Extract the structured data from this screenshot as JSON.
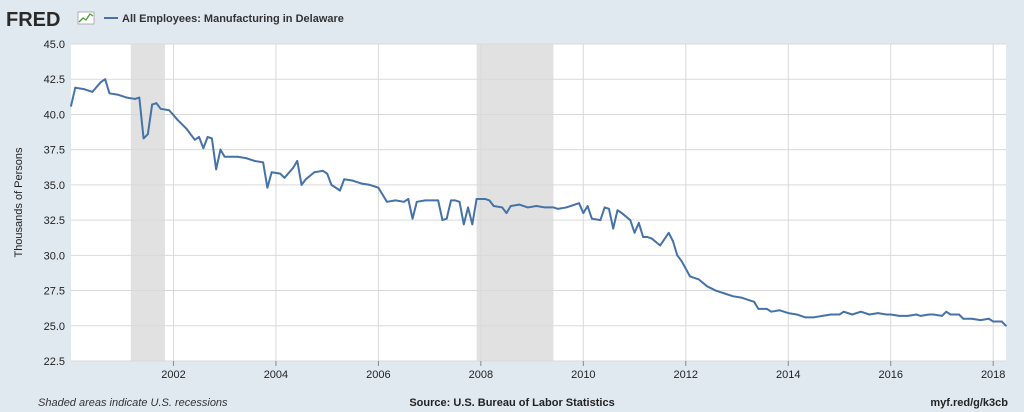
{
  "header": {
    "logo": "FRED",
    "series_title": "All Employees: Manufacturing in Delaware"
  },
  "footer": {
    "left": "Shaded areas indicate U.S. recessions",
    "source": "Source: U.S. Bureau of Labor Statistics",
    "short_url": "myf.red/g/k3cb"
  },
  "colors": {
    "line": "#4572a7",
    "recession": "#e1e1e1",
    "plot_bg": "#ffffff",
    "page_bg": "#e1e9f0",
    "grid": "#d9d9d9"
  },
  "chart_data": {
    "type": "line",
    "title": "All Employees: Manufacturing in Delaware",
    "xlabel": "",
    "ylabel": "Thousands of Persons",
    "xlim": [
      "2000-01",
      "2018-04"
    ],
    "ylim": [
      22.5,
      45.0
    ],
    "yticks": [
      "22.5",
      "25.0",
      "27.5",
      "30.0",
      "32.5",
      "35.0",
      "37.5",
      "40.0",
      "42.5",
      "45.0"
    ],
    "xticks": [
      "2002",
      "2004",
      "2006",
      "2008",
      "2010",
      "2012",
      "2014",
      "2016",
      "2018"
    ],
    "grid": true,
    "legend": "top-left",
    "recessions": [
      [
        "2001-03",
        "2001-11"
      ],
      [
        "2007-12",
        "2009-06"
      ]
    ],
    "series": [
      {
        "name": "All Employees: Manufacturing in Delaware",
        "points": [
          [
            "2000-01",
            40.6
          ],
          [
            "2000-02",
            41.9
          ],
          [
            "2000-04",
            41.8
          ],
          [
            "2000-06",
            41.6
          ],
          [
            "2000-08",
            42.3
          ],
          [
            "2000-09",
            42.5
          ],
          [
            "2000-10",
            41.5
          ],
          [
            "2000-12",
            41.4
          ],
          [
            "2001-02",
            41.2
          ],
          [
            "2001-04",
            41.1
          ],
          [
            "2001-05",
            41.2
          ],
          [
            "2001-06",
            38.3
          ],
          [
            "2001-07",
            38.6
          ],
          [
            "2001-08",
            40.7
          ],
          [
            "2001-09",
            40.8
          ],
          [
            "2001-10",
            40.4
          ],
          [
            "2001-12",
            40.3
          ],
          [
            "2002-02",
            39.6
          ],
          [
            "2002-04",
            39.0
          ],
          [
            "2002-06",
            38.2
          ],
          [
            "2002-07",
            38.4
          ],
          [
            "2002-08",
            37.6
          ],
          [
            "2002-09",
            38.4
          ],
          [
            "2002-10",
            38.3
          ],
          [
            "2002-11",
            36.1
          ],
          [
            "2002-12",
            37.5
          ],
          [
            "2003-01",
            37.0
          ],
          [
            "2003-04",
            37.0
          ],
          [
            "2003-06",
            36.9
          ],
          [
            "2003-08",
            36.7
          ],
          [
            "2003-10",
            36.6
          ],
          [
            "2003-11",
            34.8
          ],
          [
            "2003-12",
            35.9
          ],
          [
            "2004-02",
            35.8
          ],
          [
            "2004-03",
            35.5
          ],
          [
            "2004-05",
            36.2
          ],
          [
            "2004-06",
            36.7
          ],
          [
            "2004-07",
            35.0
          ],
          [
            "2004-08",
            35.4
          ],
          [
            "2004-10",
            35.9
          ],
          [
            "2004-12",
            36.0
          ],
          [
            "2005-01",
            35.8
          ],
          [
            "2005-02",
            35.0
          ],
          [
            "2005-04",
            34.6
          ],
          [
            "2005-05",
            35.4
          ],
          [
            "2005-07",
            35.3
          ],
          [
            "2005-09",
            35.1
          ],
          [
            "2005-11",
            35.0
          ],
          [
            "2006-01",
            34.8
          ],
          [
            "2006-03",
            33.8
          ],
          [
            "2006-05",
            33.9
          ],
          [
            "2006-07",
            33.8
          ],
          [
            "2006-08",
            34.0
          ],
          [
            "2006-09",
            32.6
          ],
          [
            "2006-10",
            33.8
          ],
          [
            "2006-12",
            33.9
          ],
          [
            "2007-02",
            33.9
          ],
          [
            "2007-03",
            33.9
          ],
          [
            "2007-04",
            32.5
          ],
          [
            "2007-05",
            32.6
          ],
          [
            "2007-06",
            33.9
          ],
          [
            "2007-07",
            33.9
          ],
          [
            "2007-08",
            33.8
          ],
          [
            "2007-09",
            32.2
          ],
          [
            "2007-10",
            33.4
          ],
          [
            "2007-11",
            32.2
          ],
          [
            "2007-12",
            34.0
          ],
          [
            "2008-02",
            34.0
          ],
          [
            "2008-03",
            33.9
          ],
          [
            "2008-04",
            33.5
          ],
          [
            "2008-06",
            33.4
          ],
          [
            "2008-07",
            33.0
          ],
          [
            "2008-08",
            33.5
          ],
          [
            "2008-10",
            33.6
          ],
          [
            "2008-12",
            33.4
          ],
          [
            "2009-02",
            33.5
          ],
          [
            "2009-04",
            33.4
          ],
          [
            "2009-06",
            33.4
          ],
          [
            "2009-07",
            33.3
          ],
          [
            "2009-09",
            33.4
          ],
          [
            "2009-10",
            33.5
          ],
          [
            "2009-12",
            33.7
          ],
          [
            "2010-01",
            33.0
          ],
          [
            "2010-02",
            33.5
          ],
          [
            "2010-03",
            32.6
          ],
          [
            "2010-05",
            32.5
          ],
          [
            "2010-06",
            33.4
          ],
          [
            "2010-07",
            33.3
          ],
          [
            "2010-08",
            31.9
          ],
          [
            "2010-09",
            33.2
          ],
          [
            "2010-10",
            33.0
          ],
          [
            "2010-12",
            32.5
          ],
          [
            "2011-01",
            31.6
          ],
          [
            "2011-02",
            32.3
          ],
          [
            "2011-03",
            31.3
          ],
          [
            "2011-04",
            31.3
          ],
          [
            "2011-05",
            31.2
          ],
          [
            "2011-07",
            30.7
          ],
          [
            "2011-09",
            31.6
          ],
          [
            "2011-10",
            31.0
          ],
          [
            "2011-11",
            30.0
          ],
          [
            "2011-12",
            29.6
          ],
          [
            "2012-02",
            28.5
          ],
          [
            "2012-04",
            28.3
          ],
          [
            "2012-06",
            27.8
          ],
          [
            "2012-08",
            27.5
          ],
          [
            "2012-10",
            27.3
          ],
          [
            "2012-12",
            27.1
          ],
          [
            "2013-02",
            27.0
          ],
          [
            "2013-04",
            26.8
          ],
          [
            "2013-05",
            26.7
          ],
          [
            "2013-06",
            26.2
          ],
          [
            "2013-08",
            26.2
          ],
          [
            "2013-09",
            26.0
          ],
          [
            "2013-11",
            26.1
          ],
          [
            "2014-01",
            25.9
          ],
          [
            "2014-03",
            25.8
          ],
          [
            "2014-05",
            25.6
          ],
          [
            "2014-07",
            25.6
          ],
          [
            "2014-09",
            25.7
          ],
          [
            "2014-11",
            25.8
          ],
          [
            "2015-01",
            25.8
          ],
          [
            "2015-02",
            26.0
          ],
          [
            "2015-04",
            25.8
          ],
          [
            "2015-06",
            26.0
          ],
          [
            "2015-08",
            25.8
          ],
          [
            "2015-10",
            25.9
          ],
          [
            "2015-12",
            25.8
          ],
          [
            "2016-01",
            25.8
          ],
          [
            "2016-03",
            25.7
          ],
          [
            "2016-05",
            25.7
          ],
          [
            "2016-07",
            25.8
          ],
          [
            "2016-08",
            25.7
          ],
          [
            "2016-10",
            25.8
          ],
          [
            "2016-11",
            25.8
          ],
          [
            "2017-01",
            25.7
          ],
          [
            "2017-02",
            26.0
          ],
          [
            "2017-03",
            25.8
          ],
          [
            "2017-05",
            25.8
          ],
          [
            "2017-06",
            25.5
          ],
          [
            "2017-08",
            25.5
          ],
          [
            "2017-10",
            25.4
          ],
          [
            "2017-12",
            25.5
          ],
          [
            "2018-01",
            25.3
          ],
          [
            "2018-03",
            25.3
          ],
          [
            "2018-04",
            25.0
          ]
        ]
      }
    ]
  }
}
